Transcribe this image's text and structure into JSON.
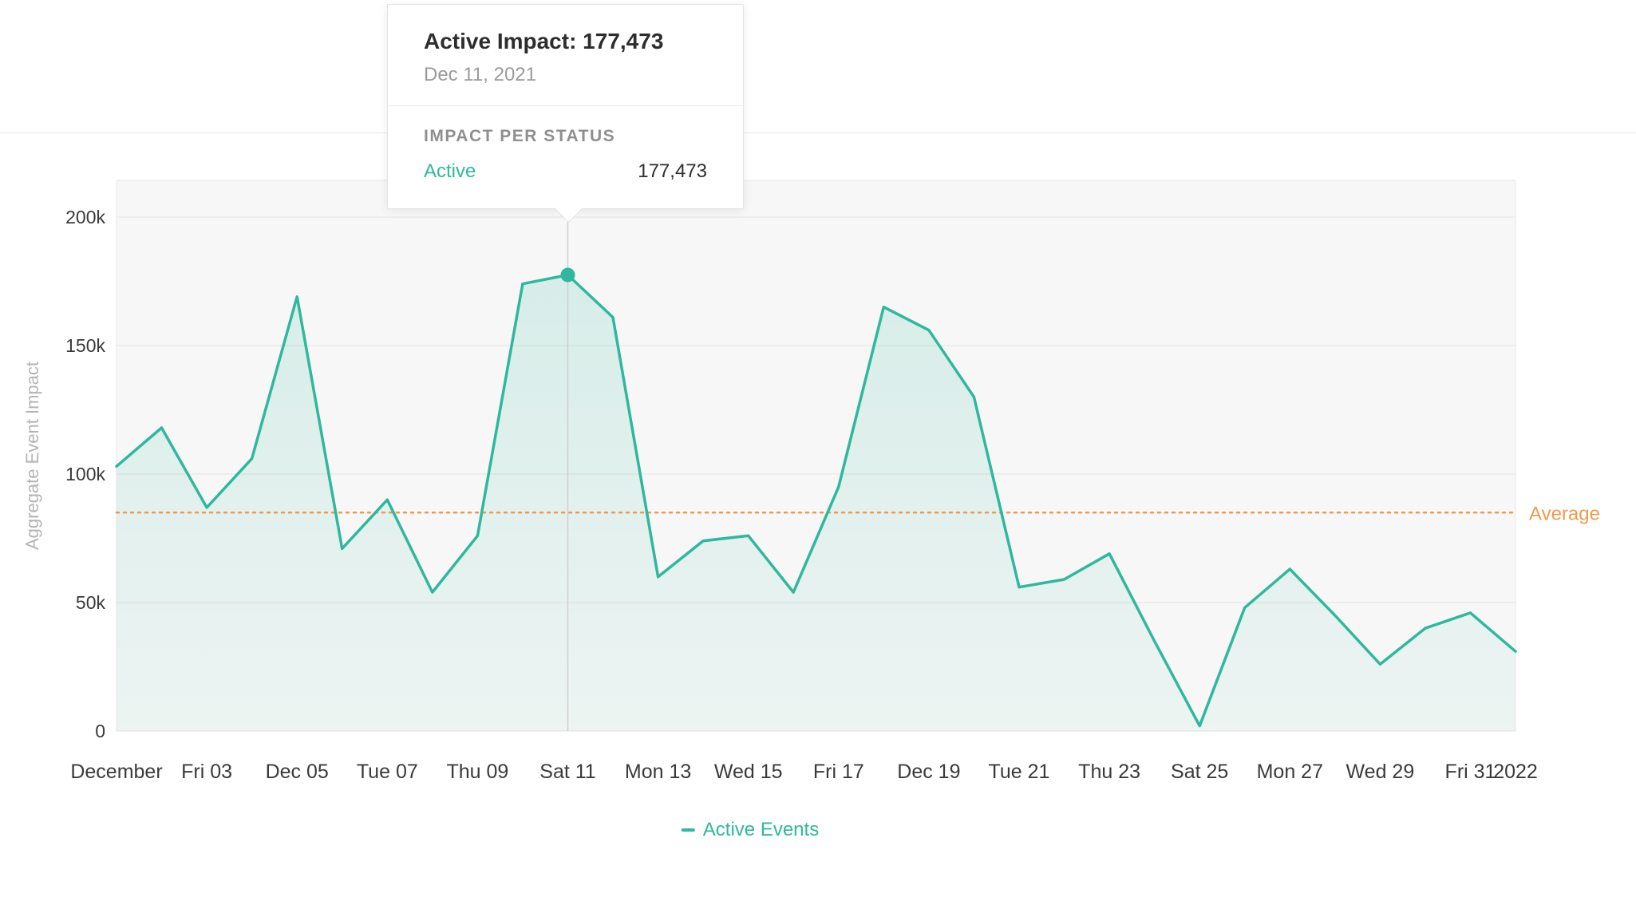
{
  "tooltip": {
    "title": "Active Impact: 177,473",
    "date": "Dec 11, 2021",
    "section_header": "IMPACT PER STATUS",
    "rows": [
      {
        "label": "Active",
        "value": "177,473"
      }
    ]
  },
  "chart_data": {
    "type": "area",
    "title": "",
    "xlabel": "",
    "ylabel": "Aggregate Event Impact",
    "ylim": [
      0,
      200000
    ],
    "grid": true,
    "legend_position": "bottom-center",
    "x": [
      "Dec 1",
      "Dec 2",
      "Dec 3",
      "Dec 4",
      "Dec 5",
      "Dec 6",
      "Dec 7",
      "Dec 8",
      "Dec 9",
      "Dec 10",
      "Dec 11",
      "Dec 12",
      "Dec 13",
      "Dec 14",
      "Dec 15",
      "Dec 16",
      "Dec 17",
      "Dec 18",
      "Dec 19",
      "Dec 20",
      "Dec 21",
      "Dec 22",
      "Dec 23",
      "Dec 24",
      "Dec 25",
      "Dec 26",
      "Dec 27",
      "Dec 28",
      "Dec 29",
      "Dec 30",
      "Dec 31",
      "Jan 1"
    ],
    "series": [
      {
        "name": "Active Events",
        "values": [
          103000,
          118000,
          87000,
          106000,
          169000,
          71000,
          90000,
          54000,
          76000,
          174000,
          177473,
          161000,
          60000,
          74000,
          76000,
          54000,
          95000,
          165000,
          156000,
          130000,
          56000,
          59000,
          69000,
          35000,
          2000,
          48000,
          63000,
          45000,
          26000,
          40000,
          46000,
          31000
        ]
      }
    ],
    "highlight": {
      "index": 10,
      "value": 177473,
      "date": "Dec 11, 2021"
    },
    "average": {
      "value": 85000,
      "label": "Average"
    },
    "y_ticks": [
      0,
      50000,
      100000,
      150000,
      200000
    ],
    "y_tick_labels": [
      "0",
      "50k",
      "100k",
      "150k",
      "200k"
    ],
    "x_tick_labels": [
      {
        "index": 0,
        "label": "December"
      },
      {
        "index": 2,
        "label": "Fri 03"
      },
      {
        "index": 4,
        "label": "Dec 05"
      },
      {
        "index": 6,
        "label": "Tue 07"
      },
      {
        "index": 8,
        "label": "Thu 09"
      },
      {
        "index": 10,
        "label": "Sat 11"
      },
      {
        "index": 12,
        "label": "Mon 13"
      },
      {
        "index": 14,
        "label": "Wed 15"
      },
      {
        "index": 16,
        "label": "Fri 17"
      },
      {
        "index": 18,
        "label": "Dec 19"
      },
      {
        "index": 20,
        "label": "Tue 21"
      },
      {
        "index": 22,
        "label": "Thu 23"
      },
      {
        "index": 24,
        "label": "Sat 25"
      },
      {
        "index": 26,
        "label": "Mon 27"
      },
      {
        "index": 28,
        "label": "Wed 29"
      },
      {
        "index": 30,
        "label": "Fri 31"
      },
      {
        "index": 31,
        "label": "2022"
      }
    ],
    "colors": {
      "line": "#2fb89d",
      "average": "#ee9a4d",
      "axis_text": "#3a3a3a",
      "muted_text": "#b3b3b3",
      "grid": "#e3e3e3",
      "plot_bg": "#f7f7f7",
      "highlight_line": "#cfcfcf"
    }
  }
}
